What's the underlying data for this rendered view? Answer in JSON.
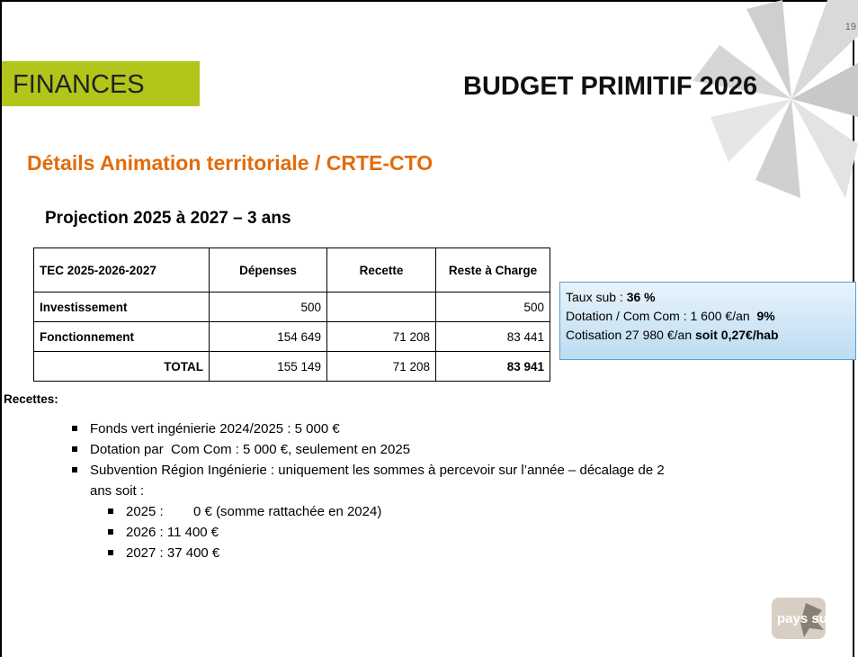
{
  "page_number": "19",
  "section": "FINANCES",
  "title": "BUDGET PRIMITIF 2026",
  "heading": "Détails Animation territoriale / CRTE-CTO",
  "subheading": "Projection 2025 à 2027 – 3 ans",
  "table": {
    "header": [
      "TEC 2025-2026-2027",
      "Dépenses",
      "Recette",
      "Reste à Charge"
    ],
    "rows": [
      [
        "Investissement",
        "500",
        null,
        "500"
      ],
      [
        "Fonctionnement",
        "154 649",
        "71 208",
        "83 441"
      ],
      [
        "TOTAL",
        "155 149",
        "71 208",
        "83 941"
      ]
    ]
  },
  "info_box": [
    {
      "text": "Taux sub : ",
      "strong": "36 %"
    },
    {
      "text": "Dotation / Com Com : 1 600 €/an  ",
      "strong": "9%"
    },
    {
      "text": "Cotisation 27 980 €/an ",
      "strong": "soit 0,27€/hab"
    }
  ],
  "recettes": {
    "title": "Recettes:",
    "items": [
      {
        "text": "Fonds vert ingénierie 2024/2025 : 5 000 €"
      },
      {
        "text": "Dotation par  Com Com : 5 000 €, seulement en 2025"
      },
      {
        "text": "Subvention Région Ingénierie : uniquement les sommes à percevoir sur l’année – décalage de 2 ans soit :",
        "subitems": [
          "2025 :        0 € (somme rattachée en 2024)",
          "2026 : 11 400 €",
          "2027 : 37 400 €"
        ]
      }
    ]
  },
  "logo": "pays sud"
}
